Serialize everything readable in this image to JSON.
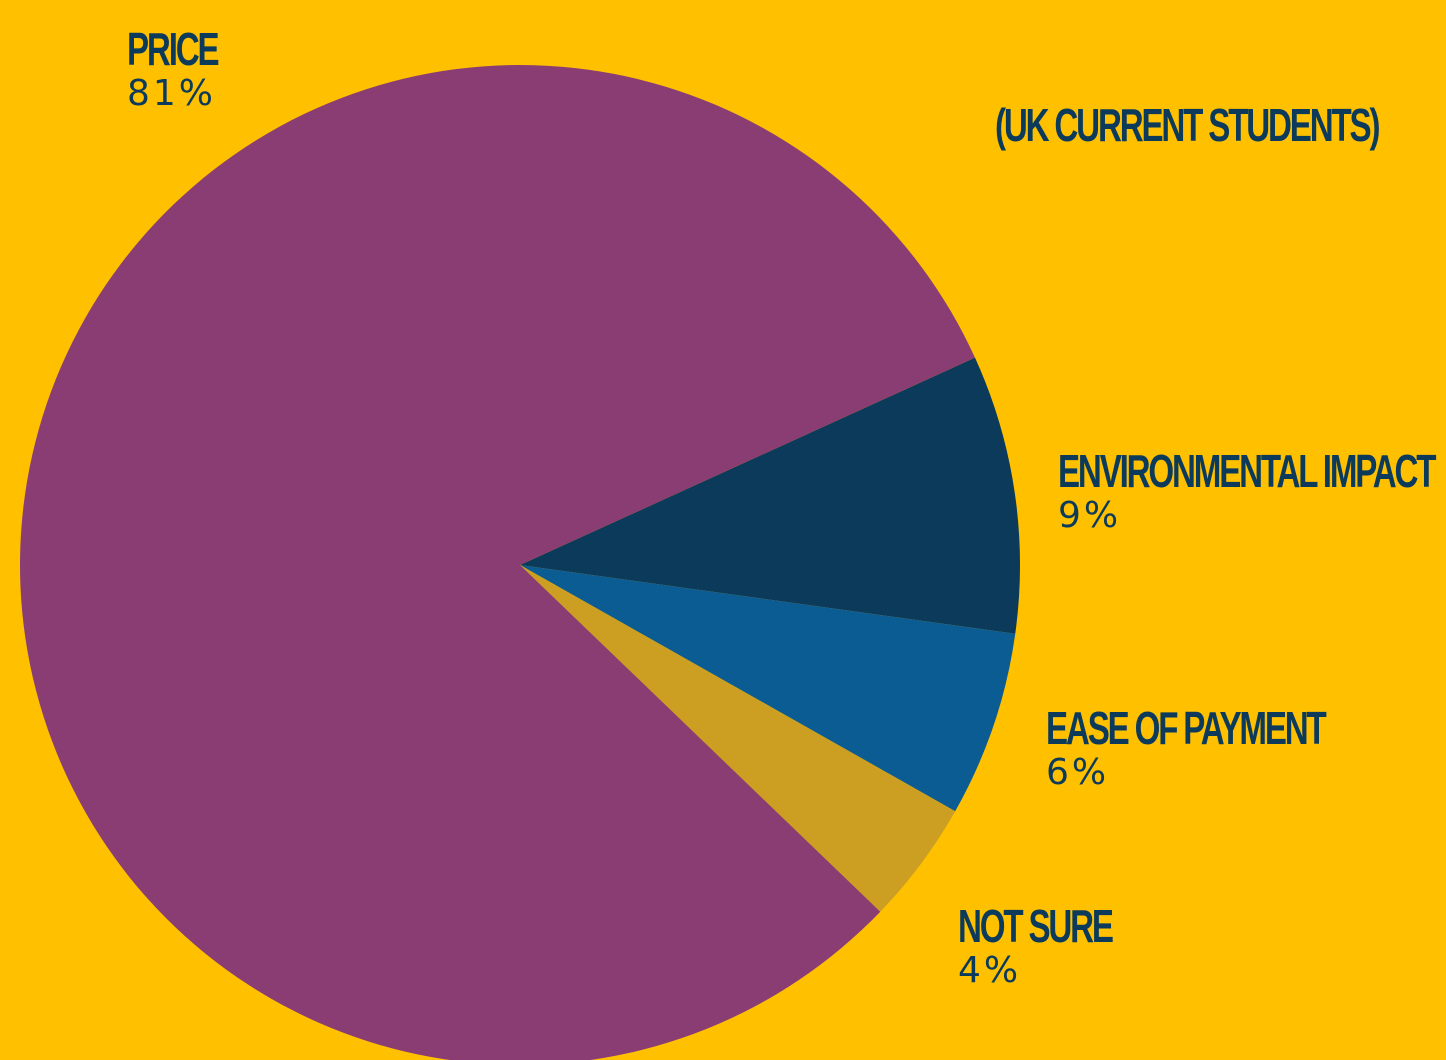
{
  "chart_data": {
    "type": "pie",
    "subtitle": "(UK CURRENT STUDENTS)",
    "slices": [
      {
        "label": "ENVIRONMENTAL IMPACT",
        "value": 9,
        "value_label": "9%",
        "color": "#0B3A5B"
      },
      {
        "label": "EASE OF PAYMENT",
        "value": 6,
        "value_label": "6%",
        "color": "#0A5C92"
      },
      {
        "label": "NOT SURE",
        "value": 4,
        "value_label": "4%",
        "color": "#CC9F22"
      },
      {
        "label": "PRICE",
        "value": 81,
        "value_label": "81%",
        "color": "#8A3D72"
      }
    ]
  }
}
